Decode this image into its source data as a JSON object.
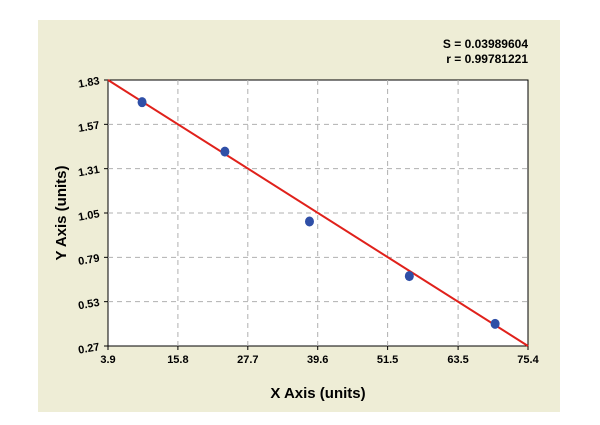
{
  "chart_data": {
    "type": "scatter",
    "title": "",
    "xlabel": "X Axis (units)",
    "ylabel": "Y Axis (units)",
    "xlim": [
      3.9,
      75.4
    ],
    "ylim": [
      0.27,
      1.83
    ],
    "x_ticks": [
      "3.9",
      "15.8",
      "27.7",
      "39.6",
      "51.5",
      "63.5",
      "75.4"
    ],
    "y_ticks": [
      "0.27",
      "0.53",
      "0.79",
      "1.05",
      "1.31",
      "1.57",
      "1.83"
    ],
    "grid": true,
    "stats": {
      "s_label": "S = 0.03989604",
      "r_label": "r = 0.99781221"
    },
    "points": [
      {
        "x": 9.7,
        "y": 1.7
      },
      {
        "x": 23.8,
        "y": 1.41
      },
      {
        "x": 38.2,
        "y": 1.0
      },
      {
        "x": 55.2,
        "y": 0.68
      },
      {
        "x": 69.8,
        "y": 0.4
      }
    ],
    "fit_line": {
      "x": [
        3.9,
        75.4
      ],
      "y": [
        1.83,
        0.27
      ]
    },
    "colors": {
      "panel_background": "#eeedd6",
      "plot_background": "#ffffff",
      "grid": "#b0b0b0",
      "point": "#2f4fa7",
      "fit_line": "#e0211b",
      "text": "#000000"
    }
  }
}
